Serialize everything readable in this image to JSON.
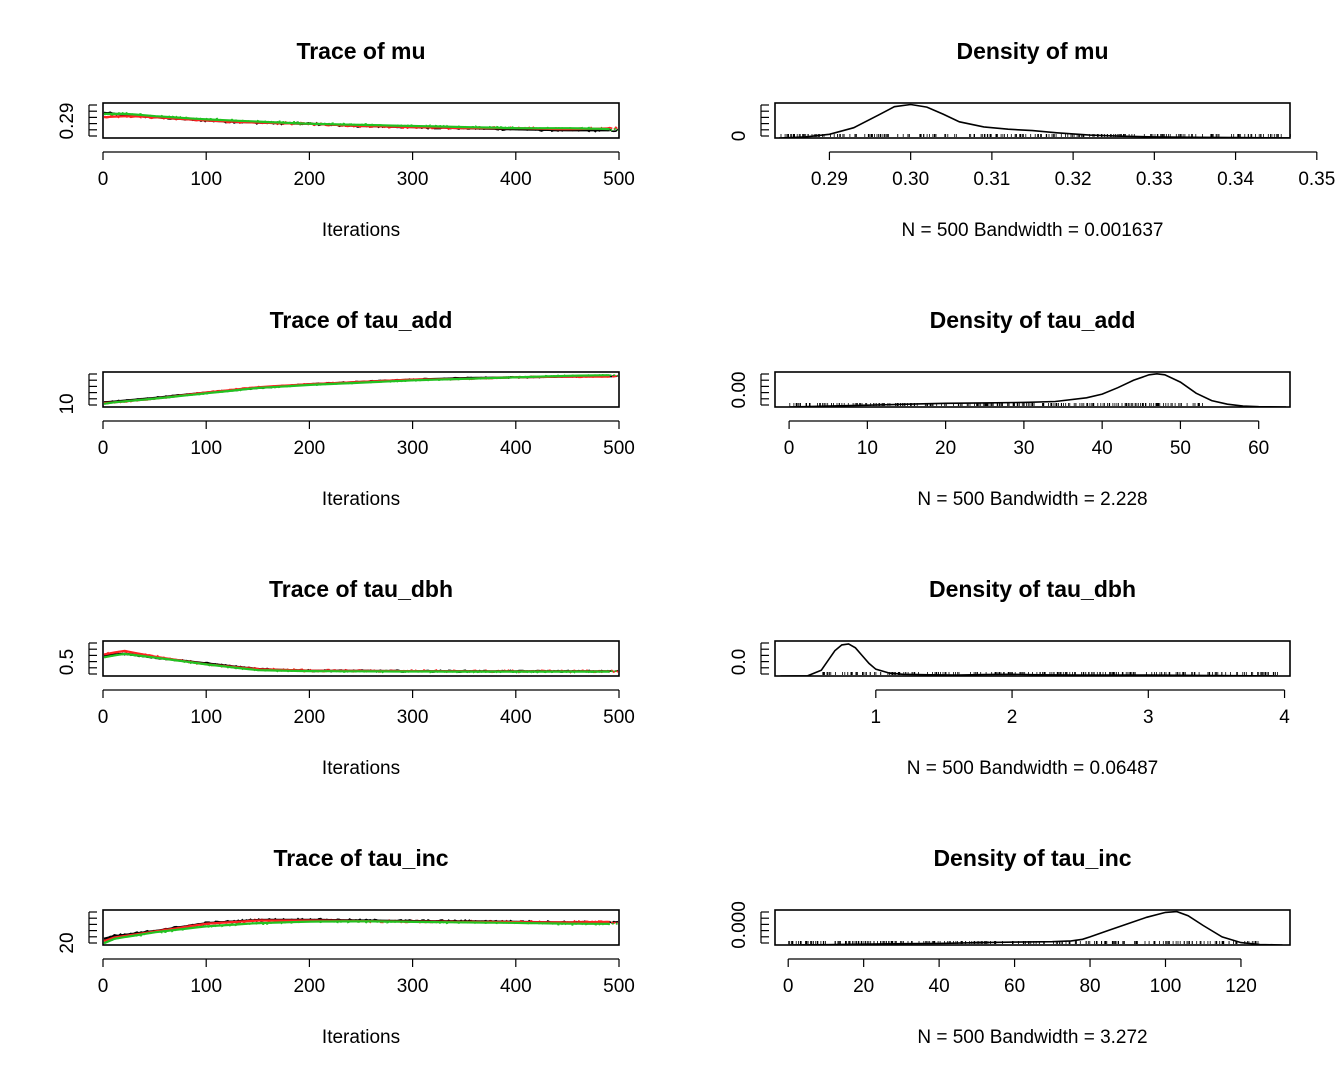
{
  "colors": {
    "chain1": "#000000",
    "chain2": "#ff2222",
    "chain3": "#22c222",
    "frame": "#000000"
  },
  "chart_data": [
    {
      "type": "line",
      "kind": "trace",
      "title": "Trace of mu",
      "xlabel": "Iterations",
      "ylabel": "",
      "xlim": [
        0,
        500
      ],
      "ylim": [
        0.283,
        0.315
      ],
      "xticks": [
        0,
        100,
        200,
        300,
        400,
        500
      ],
      "yticks": [
        0.29
      ],
      "ytick_labels": [
        "0.29"
      ],
      "series": [
        {
          "values_at_x": [
            0,
            25,
            50,
            100,
            150,
            200,
            250,
            300,
            350,
            400,
            450,
            500
          ],
          "y": [
            0.306,
            0.304,
            0.302,
            0.299,
            0.297,
            0.296,
            0.294,
            0.293,
            0.292,
            0.291,
            0.29,
            0.29
          ],
          "noise": 0.0012
        },
        {
          "values_at_x": [
            0,
            25,
            50,
            100,
            150,
            200,
            250,
            300,
            350,
            400,
            450,
            500
          ],
          "y": [
            0.302,
            0.303,
            0.302,
            0.299,
            0.297,
            0.296,
            0.294,
            0.293,
            0.292,
            0.292,
            0.291,
            0.292
          ],
          "noise": 0.0012
        },
        {
          "values_at_x": [
            0,
            25,
            50,
            100,
            150,
            200,
            250,
            300,
            350,
            400,
            450,
            500
          ],
          "y": [
            0.305,
            0.305,
            0.303,
            0.3,
            0.298,
            0.296,
            0.295,
            0.294,
            0.293,
            0.292,
            0.292,
            0.291
          ],
          "noise": 0.0012
        }
      ]
    },
    {
      "type": "line",
      "kind": "density",
      "title": "Density of mu",
      "xlabel": "N = 500   Bandwidth = 0.001637",
      "ylabel": "",
      "xlim": [
        0.2833,
        0.3467
      ],
      "ylim": [
        0,
        0.95
      ],
      "xticks": [
        0.29,
        0.3,
        0.31,
        0.32,
        0.33,
        0.34,
        0.35
      ],
      "xtick_labels": [
        "0.29",
        "0.30",
        "0.31",
        "0.32",
        "0.33",
        "0.34",
        "0.35"
      ],
      "yticks": [
        0
      ],
      "ytick_labels": [
        "0"
      ],
      "x": [
        0.2838,
        0.287,
        0.29,
        0.293,
        0.296,
        0.298,
        0.3,
        0.302,
        0.304,
        0.306,
        0.309,
        0.312,
        0.315,
        0.318,
        0.322,
        0.326,
        0.33,
        0.335,
        0.34,
        0.3475
      ],
      "y": [
        0.0,
        0.03,
        0.1,
        0.28,
        0.62,
        0.85,
        0.91,
        0.84,
        0.65,
        0.44,
        0.3,
        0.24,
        0.2,
        0.14,
        0.08,
        0.05,
        0.03,
        0.02,
        0.01,
        0.0
      ],
      "rug_range": [
        0.284,
        0.347
      ]
    },
    {
      "type": "line",
      "kind": "trace",
      "title": "Trace of tau_add",
      "xlabel": "Iterations",
      "ylabel": "",
      "xlim": [
        0,
        500
      ],
      "ylim": [
        6,
        52
      ],
      "xticks": [
        0,
        100,
        200,
        300,
        400,
        500
      ],
      "yticks": [
        10
      ],
      "ytick_labels": [
        "10"
      ],
      "series": [
        {
          "values_at_x": [
            0,
            10,
            50,
            100,
            150,
            200,
            250,
            300,
            350,
            400,
            450,
            500
          ],
          "y": [
            12,
            13,
            18,
            25,
            31,
            36,
            39,
            42,
            44,
            45,
            46,
            47
          ],
          "noise": 1.0
        },
        {
          "values_at_x": [
            0,
            10,
            50,
            100,
            150,
            200,
            250,
            300,
            350,
            400,
            450,
            500
          ],
          "y": [
            11,
            12,
            17,
            25,
            32,
            36,
            39,
            42,
            43,
            45,
            46,
            46
          ],
          "noise": 1.0
        },
        {
          "values_at_x": [
            0,
            10,
            50,
            100,
            150,
            200,
            250,
            300,
            350,
            400,
            450,
            500
          ],
          "y": [
            10,
            12,
            17,
            24,
            31,
            35,
            38,
            41,
            43,
            45,
            47,
            48
          ],
          "noise": 1.0
        }
      ]
    },
    {
      "type": "line",
      "kind": "density",
      "title": "Density of tau_add",
      "xlabel": "N = 500   Bandwidth = 2.228",
      "ylabel": "",
      "xlim": [
        -1.8,
        64
      ],
      "ylim": [
        0,
        0.038
      ],
      "xticks": [
        0,
        10,
        20,
        30,
        40,
        50,
        60
      ],
      "xtick_labels": [
        "0",
        "10",
        "20",
        "30",
        "40",
        "50",
        "60"
      ],
      "yticks": [
        0
      ],
      "ytick_labels": [
        "0.00"
      ],
      "x": [
        0,
        5,
        10,
        15,
        20,
        25,
        30,
        34,
        38,
        40,
        42,
        44,
        46,
        47,
        48,
        50,
        52,
        54,
        56,
        58,
        60,
        63.5
      ],
      "y": [
        0.0,
        0.001,
        0.002,
        0.003,
        0.004,
        0.0045,
        0.005,
        0.006,
        0.01,
        0.014,
        0.021,
        0.029,
        0.035,
        0.036,
        0.035,
        0.027,
        0.015,
        0.007,
        0.003,
        0.001,
        0.0003,
        0.0
      ],
      "rug_range": [
        0,
        53
      ]
    },
    {
      "type": "line",
      "kind": "trace",
      "title": "Trace of tau_dbh",
      "xlabel": "Iterations",
      "ylabel": "",
      "xlim": [
        0,
        500
      ],
      "ylim": [
        0.3,
        3.9
      ],
      "xticks": [
        0,
        100,
        200,
        300,
        400,
        500
      ],
      "yticks": [
        0.5
      ],
      "ytick_labels": [
        "0.5"
      ],
      "series": [
        {
          "values_at_x": [
            0,
            20,
            50,
            100,
            150,
            200,
            250,
            300,
            400,
            500
          ],
          "y": [
            2.4,
            2.6,
            2.2,
            1.6,
            1.0,
            0.85,
            0.82,
            0.8,
            0.78,
            0.78
          ],
          "noise": 0.1
        },
        {
          "values_at_x": [
            0,
            20,
            50,
            100,
            150,
            200,
            250,
            300,
            400,
            500
          ],
          "y": [
            2.5,
            2.9,
            2.3,
            1.5,
            1.0,
            0.85,
            0.82,
            0.8,
            0.78,
            0.78
          ],
          "noise": 0.12
        },
        {
          "values_at_x": [
            0,
            20,
            50,
            100,
            150,
            200,
            250,
            300,
            400,
            500
          ],
          "y": [
            2.2,
            2.6,
            2.2,
            1.5,
            0.9,
            0.8,
            0.78,
            0.76,
            0.75,
            0.75
          ],
          "noise": 0.1
        }
      ]
    },
    {
      "type": "line",
      "kind": "density",
      "title": "Density of tau_dbh",
      "xlabel": "N = 500   Bandwidth = 0.06487",
      "ylabel": "",
      "xlim": [
        0.26,
        4.04
      ],
      "ylim": [
        0,
        3.6
      ],
      "xticks": [
        1,
        2,
        3,
        4
      ],
      "xtick_labels": [
        "1",
        "2",
        "3",
        "4"
      ],
      "yticks": [
        0
      ],
      "ytick_labels": [
        "0.0"
      ],
      "x": [
        0.3,
        0.5,
        0.6,
        0.65,
        0.7,
        0.75,
        0.8,
        0.85,
        0.9,
        0.95,
        1.0,
        1.1,
        1.2,
        1.4,
        1.6,
        1.8,
        2.0,
        2.2,
        2.5,
        3.0,
        3.5,
        3.95
      ],
      "y": [
        0.0,
        0.02,
        0.6,
        1.6,
        2.6,
        3.2,
        3.3,
        2.9,
        2.1,
        1.3,
        0.7,
        0.3,
        0.18,
        0.12,
        0.1,
        0.14,
        0.17,
        0.12,
        0.1,
        0.1,
        0.05,
        0.0
      ],
      "rug_range": [
        0.6,
        3.95
      ]
    },
    {
      "type": "line",
      "kind": "trace",
      "title": "Trace of tau_inc",
      "xlabel": "Iterations",
      "ylabel": "",
      "xlim": [
        0,
        500
      ],
      "ylim": [
        17,
        150
      ],
      "xticks": [
        0,
        100,
        200,
        300,
        400,
        500
      ],
      "yticks": [
        20
      ],
      "ytick_labels": [
        "20"
      ],
      "series": [
        {
          "values_at_x": [
            0,
            10,
            50,
            100,
            150,
            200,
            250,
            300,
            350,
            400,
            450,
            500
          ],
          "y": [
            40,
            50,
            70,
            100,
            112,
            113,
            110,
            108,
            107,
            105,
            103,
            102
          ],
          "noise": 5
        },
        {
          "values_at_x": [
            0,
            10,
            50,
            100,
            150,
            200,
            250,
            300,
            350,
            400,
            450,
            500
          ],
          "y": [
            30,
            45,
            68,
            98,
            110,
            110,
            108,
            106,
            105,
            104,
            103,
            105
          ],
          "noise": 5
        },
        {
          "values_at_x": [
            0,
            10,
            50,
            100,
            150,
            200,
            250,
            300,
            350,
            400,
            450,
            500
          ],
          "y": [
            22,
            40,
            65,
            88,
            100,
            106,
            107,
            105,
            103,
            101,
            98,
            97
          ],
          "noise": 5
        }
      ]
    },
    {
      "type": "line",
      "kind": "density",
      "title": "Density of tau_inc",
      "xlabel": "N = 500   Bandwidth = 3.272",
      "ylabel": "",
      "xlim": [
        -3.5,
        133
      ],
      "ylim": [
        0,
        0.0215
      ],
      "xticks": [
        0,
        20,
        40,
        60,
        80,
        100,
        120
      ],
      "xtick_labels": [
        "0",
        "20",
        "40",
        "60",
        "80",
        "100",
        "120"
      ],
      "yticks": [
        0
      ],
      "ytick_labels": [
        "0.000"
      ],
      "x": [
        0,
        10,
        20,
        30,
        40,
        50,
        60,
        70,
        75,
        78,
        80,
        85,
        90,
        95,
        100,
        103,
        106,
        110,
        115,
        120,
        125,
        131
      ],
      "y": [
        0.0,
        0.0002,
        0.0005,
        0.0008,
        0.001,
        0.0014,
        0.0018,
        0.002,
        0.0025,
        0.0035,
        0.005,
        0.009,
        0.013,
        0.017,
        0.02,
        0.0205,
        0.018,
        0.012,
        0.005,
        0.0015,
        0.0003,
        0.0
      ],
      "rug_range": [
        0,
        125
      ]
    }
  ]
}
